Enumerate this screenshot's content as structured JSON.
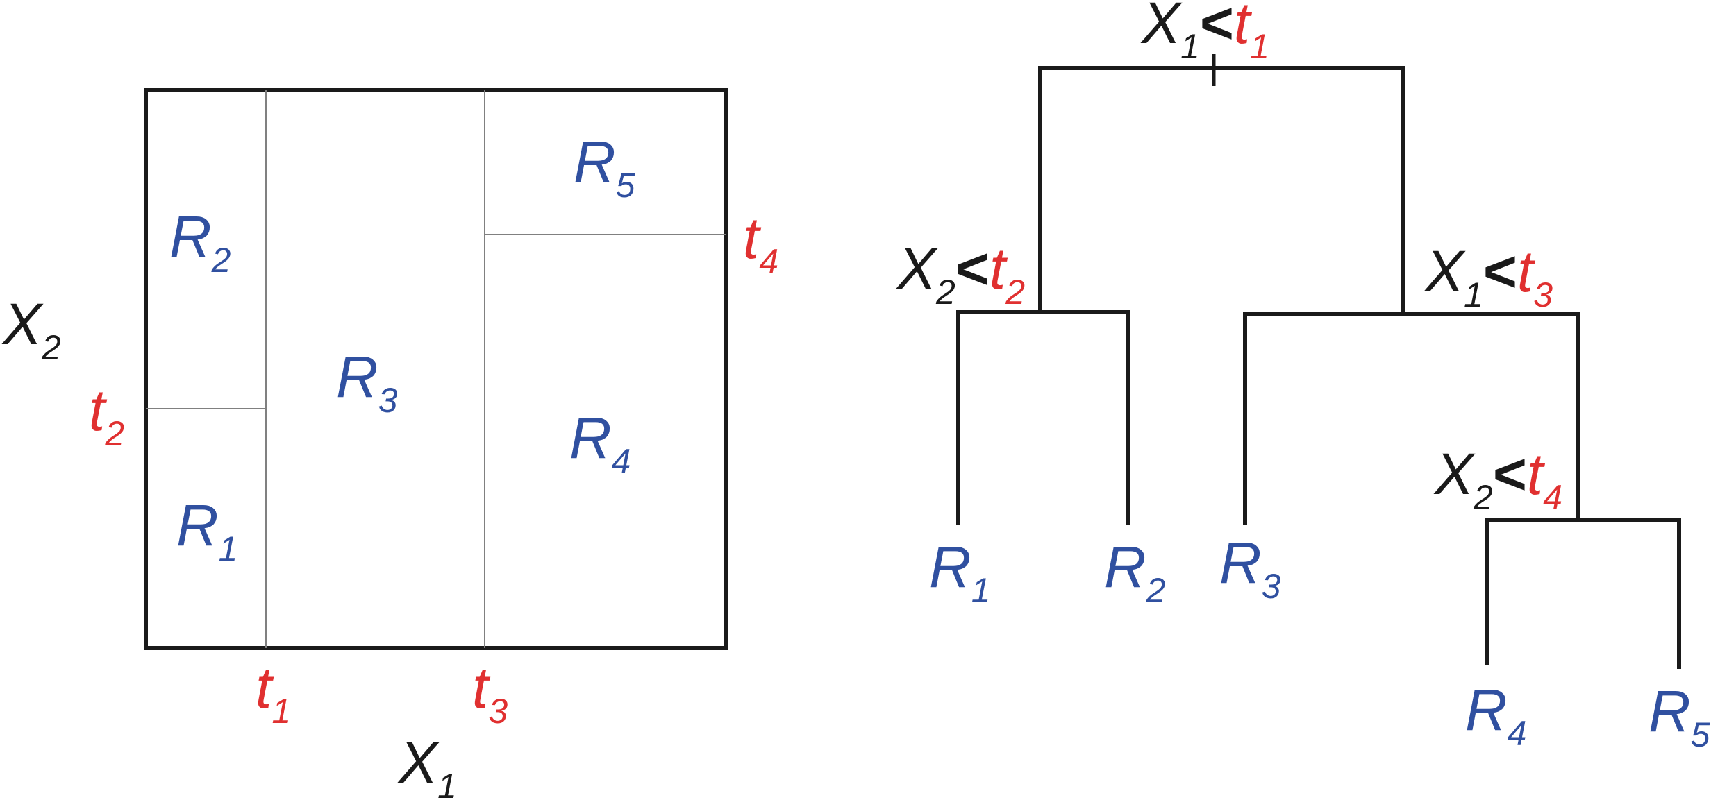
{
  "colors": {
    "variable": "#1a1a1a",
    "threshold": "#e03030",
    "region": "#3050a0"
  },
  "partition": {
    "x_axis": {
      "letter": "X",
      "sub": "1"
    },
    "y_axis": {
      "letter": "X",
      "sub": "2"
    },
    "thresholds": {
      "t1": {
        "letter": "t",
        "sub": "1"
      },
      "t2": {
        "letter": "t",
        "sub": "2"
      },
      "t3": {
        "letter": "t",
        "sub": "3"
      },
      "t4": {
        "letter": "t",
        "sub": "4"
      }
    },
    "regions": {
      "R1": {
        "letter": "R",
        "sub": "1"
      },
      "R2": {
        "letter": "R",
        "sub": "2"
      },
      "R3": {
        "letter": "R",
        "sub": "3"
      },
      "R4": {
        "letter": "R",
        "sub": "4"
      },
      "R5": {
        "letter": "R",
        "sub": "5"
      }
    }
  },
  "tree": {
    "op": "<",
    "root": {
      "var": "X",
      "var_sub": "1",
      "thr": "t",
      "thr_sub": "1"
    },
    "left": {
      "var": "X",
      "var_sub": "2",
      "thr": "t",
      "thr_sub": "2"
    },
    "right": {
      "var": "X",
      "var_sub": "1",
      "thr": "t",
      "thr_sub": "3"
    },
    "right_right": {
      "var": "X",
      "var_sub": "2",
      "thr": "t",
      "thr_sub": "4"
    },
    "leaves": {
      "R1": {
        "letter": "R",
        "sub": "1"
      },
      "R2": {
        "letter": "R",
        "sub": "2"
      },
      "R3": {
        "letter": "R",
        "sub": "3"
      },
      "R4": {
        "letter": "R",
        "sub": "4"
      },
      "R5": {
        "letter": "R",
        "sub": "5"
      }
    }
  }
}
